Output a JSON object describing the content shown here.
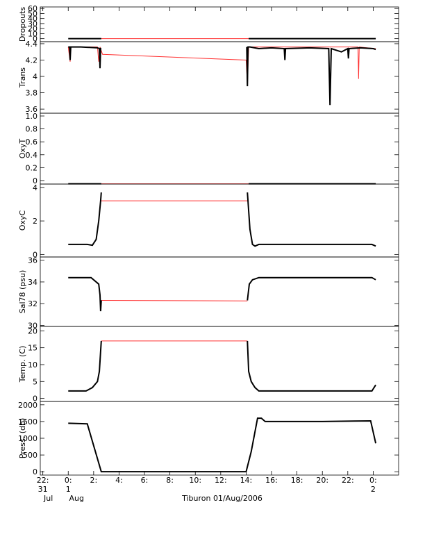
{
  "chart_data": [
    {
      "type": "line",
      "ylabel": "Dropouts",
      "ylim": [
        -6,
        63
      ],
      "yticks": [
        0,
        10,
        20,
        30,
        40,
        50,
        60
      ],
      "series": [
        {
          "color": "#ff3030",
          "x": [
            2.6,
            14.2
          ],
          "values": [
            0,
            0
          ]
        },
        {
          "color": "#000000",
          "x": [
            0,
            2.6,
            8,
            14.2,
            24.2
          ],
          "values": [
            0,
            0,
            null,
            0,
            0
          ]
        }
      ]
    },
    {
      "type": "line",
      "ylabel": "Trans",
      "ylim": [
        3.55,
        4.425
      ],
      "yticks": [
        3.6,
        3.8,
        4.0,
        4.2,
        4.4
      ],
      "series": [
        {
          "color": "#ff3030",
          "x": [
            0,
            0.15,
            0.2,
            2.3,
            2.4,
            2.5,
            2.7,
            14.0,
            14.1,
            14.2,
            22.8,
            22.85,
            22.9,
            24.2
          ],
          "values": [
            4.36,
            4.18,
            4.36,
            4.36,
            4.18,
            4.36,
            4.27,
            4.2,
            3.9,
            4.36,
            4.36,
            3.97,
            4.36,
            4.34
          ]
        },
        {
          "color": "#000000",
          "x": [
            0,
            0.1,
            0.15,
            0.2,
            1,
            2.3,
            2.45,
            2.5,
            2.55,
            8,
            14.05,
            14.1,
            14.15,
            14.3,
            15,
            16,
            17,
            17.05,
            17.1,
            19,
            20.5,
            20.6,
            20.7,
            21.5,
            22,
            22.05,
            22.1,
            23,
            24,
            24.2
          ],
          "values": [
            4.36,
            4.36,
            4.2,
            4.36,
            4.36,
            4.35,
            4.34,
            4.1,
            4.35,
            null,
            4.36,
            3.88,
            4.36,
            4.36,
            4.34,
            4.35,
            4.34,
            4.2,
            4.34,
            4.35,
            4.34,
            3.65,
            4.34,
            4.3,
            4.34,
            4.22,
            4.34,
            4.35,
            4.34,
            4.33
          ]
        }
      ]
    },
    {
      "type": "line",
      "ylabel": "OxyT",
      "ylim": [
        -0.054,
        1.043
      ],
      "yticks": [
        0.0,
        0.2,
        0.4,
        0.6,
        0.8,
        {
          "value": 1.0,
          "label": "1.0"
        }
      ],
      "series": [
        {
          "color": "#ff3030",
          "x": [
            2.6,
            14.2
          ],
          "values": [
            -0.05,
            -0.05
          ]
        },
        {
          "color": "#000000",
          "x": [
            0,
            2.6,
            8,
            14.2,
            24.2
          ],
          "values": [
            -0.05,
            -0.05,
            null,
            -0.05,
            -0.05
          ]
        }
      ]
    },
    {
      "type": "line",
      "ylabel": "OxyC",
      "ylim": [
        -0.15,
        4.2
      ],
      "yticks": [
        0,
        2,
        4
      ],
      "series": [
        {
          "color": "#ff3030",
          "x": [
            2.6,
            14.1
          ],
          "values": [
            3.2,
            3.2
          ]
        },
        {
          "color": "#000000",
          "x": [
            0,
            1.5,
            1.9,
            2.2,
            2.4,
            2.55,
            2.6,
            8,
            14.1,
            14.3,
            14.5,
            14.7,
            15,
            20,
            23.9,
            24.2
          ],
          "values": [
            0.6,
            0.6,
            0.55,
            0.9,
            2.0,
            3.2,
            3.7,
            null,
            3.7,
            1.5,
            0.6,
            0.5,
            0.6,
            0.6,
            0.6,
            0.5
          ]
        }
      ]
    },
    {
      "type": "line",
      "ylabel": "Sal78 (psu)",
      "ylim": [
        29.9,
        36.3
      ],
      "yticks": [
        30,
        32,
        34,
        36
      ],
      "series": [
        {
          "color": "#ff3030",
          "x": [
            2.6,
            14.1
          ],
          "values": [
            32.3,
            32.25
          ]
        },
        {
          "color": "#000000",
          "x": [
            0,
            1.8,
            2.4,
            2.5,
            2.55,
            2.6,
            8,
            14.1,
            14.25,
            14.5,
            15,
            20,
            23.9,
            24.2
          ],
          "values": [
            34.4,
            34.4,
            33.8,
            32.8,
            31.3,
            32.3,
            null,
            32.3,
            33.8,
            34.2,
            34.4,
            34.4,
            34.4,
            34.2
          ]
        }
      ]
    },
    {
      "type": "line",
      "ylabel": "Temp. (C)",
      "ylim": [
        -0.9,
        21.3
      ],
      "yticks": [
        0,
        5,
        10,
        15,
        20
      ],
      "series": [
        {
          "color": "#ff3030",
          "x": [
            2.6,
            14.1
          ],
          "values": [
            17,
            17
          ]
        },
        {
          "color": "#000000",
          "x": [
            0,
            1.4,
            1.9,
            2.3,
            2.45,
            2.6,
            8,
            14.1,
            14.2,
            14.4,
            14.7,
            15,
            20,
            23.9,
            24.2
          ],
          "values": [
            2.2,
            2.2,
            3.2,
            5,
            8,
            17,
            null,
            17,
            8,
            5,
            3.2,
            2.2,
            2.2,
            2.2,
            4
          ]
        }
      ]
    },
    {
      "type": "line",
      "ylabel": "Press. (db)",
      "ylim": [
        -100,
        2100
      ],
      "yticks": [
        0,
        500,
        1000,
        1500,
        2000
      ],
      "xlim": [
        -2.2,
        26
      ],
      "xlabel": "Tiburon 01/Aug/2006",
      "xticks": [
        {
          "value": -2,
          "label": "22:"
        },
        {
          "value": 0,
          "label": "0:"
        },
        {
          "value": 2,
          "label": "2:"
        },
        {
          "value": 4,
          "label": "4:"
        },
        {
          "value": 6,
          "label": "6:"
        },
        {
          "value": 8,
          "label": "8:"
        },
        {
          "value": 10,
          "label": "10:"
        },
        {
          "value": 12,
          "label": "12:"
        },
        {
          "value": 14,
          "label": "14:"
        },
        {
          "value": 16,
          "label": "16:"
        },
        {
          "value": 18,
          "label": "18:"
        },
        {
          "value": 20,
          "label": "20:"
        },
        {
          "value": 22,
          "label": "22:"
        },
        {
          "value": 24,
          "label": "0:"
        }
      ],
      "day_labels": [
        {
          "value": -2,
          "label": "31"
        },
        {
          "value": 0,
          "label": "1"
        },
        {
          "value": 24,
          "label": "2"
        }
      ],
      "month_labels": [
        {
          "value": -2,
          "label": "Jul"
        },
        {
          "value": 0,
          "label": "Aug"
        }
      ],
      "series": [
        {
          "color": "#000000",
          "x": [
            0,
            1.5,
            2.6,
            14,
            14.4,
            14.9,
            15.2,
            15.5,
            20,
            23.8,
            24.2
          ],
          "values": [
            1450,
            1430,
            0,
            0,
            600,
            1600,
            1600,
            1500,
            1500,
            1520,
            850
          ]
        }
      ]
    }
  ]
}
